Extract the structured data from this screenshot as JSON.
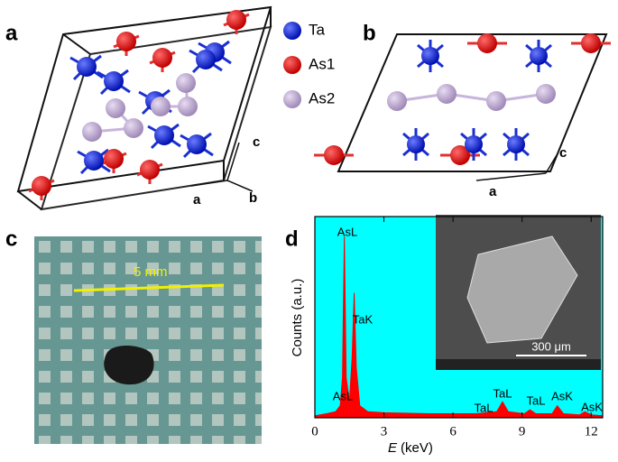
{
  "figure": {
    "panel_labels": [
      "a",
      "b",
      "c",
      "d"
    ],
    "legend": [
      "Ta",
      "As1",
      "As2"
    ],
    "axes_a": [
      "c",
      "a",
      "b"
    ],
    "axes_b": [
      "c",
      "a"
    ],
    "photo_scale": "5 mm"
  },
  "chart_data": {
    "type": "area",
    "color": "#ff0000",
    "x_label": {
      "symbol": "E",
      "unit": "(keV)"
    },
    "y_label": "Counts (a.u.)",
    "inset_scale": "300 μm",
    "xlim": [
      0,
      12.5
    ],
    "ylim": [
      0,
      100
    ],
    "xticks": [
      0,
      3,
      6,
      9,
      12
    ],
    "x": [
      0,
      0.5,
      0.9,
      1.1,
      1.2,
      1.28,
      1.36,
      1.5,
      1.62,
      1.71,
      1.8,
      1.95,
      2.3,
      3,
      5,
      7,
      7.9,
      8.15,
      8.4,
      9.1,
      9.34,
      9.6,
      10.3,
      10.53,
      10.8,
      11.5,
      11.73,
      12,
      12.5
    ],
    "values": [
      1,
      2,
      3,
      6,
      20,
      90,
      20,
      8,
      30,
      62,
      25,
      6,
      3,
      2.5,
      2,
      2,
      3,
      8,
      3,
      2,
      4,
      2,
      2,
      6,
      2,
      1.5,
      3,
      1.5,
      1
    ],
    "annotations": [
      "AsL",
      "TaK",
      "AsL",
      "TaL",
      "TaL",
      "TaL",
      "AsK",
      "AsK"
    ]
  }
}
